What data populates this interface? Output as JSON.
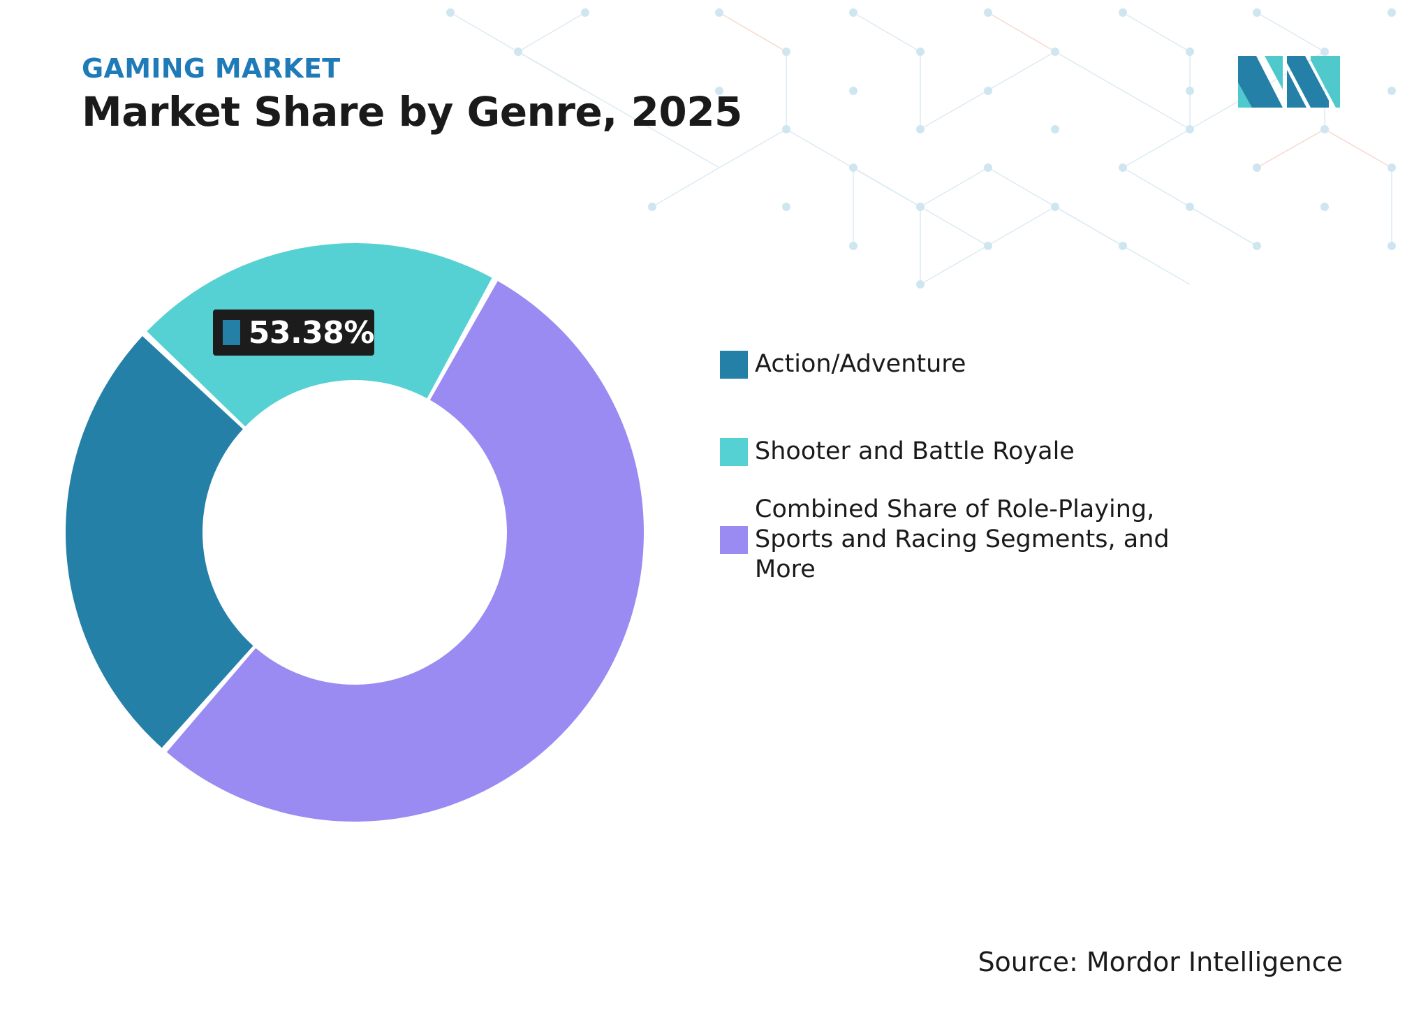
{
  "header": {
    "kicker": "GAMING MARKET",
    "title": "Market Share by Genre, 2025"
  },
  "callout": {
    "text": "53.38%",
    "color": "#2580a8"
  },
  "chart_data": {
    "type": "pie",
    "variant": "donut",
    "title": "Market Share by Genre, 2025",
    "segments": [
      {
        "label": "Action/Adventure",
        "value": 25.6,
        "color": "#2580a8"
      },
      {
        "label": "Shooter and Battle Royale",
        "value": 21.0,
        "color": "#55d1d3"
      },
      {
        "label": "Combined Share of Role-Playing, Sports and Racing Segments, and More",
        "value": 53.38,
        "color": "#9a8bf2"
      }
    ],
    "data_labels": [
      "53.38%"
    ],
    "legend_position": "right"
  },
  "legend": {
    "items": [
      {
        "label_lines": [
          "Action/Adventure"
        ],
        "color": "#2580a8"
      },
      {
        "label_lines": [
          "Shooter and Battle Royale"
        ],
        "color": "#55d1d3"
      },
      {
        "label_lines": [
          "Combined Share of Role-Playing,",
          "Sports and Racing Segments, and",
          "More"
        ],
        "color": "#9a8bf2"
      }
    ]
  },
  "footer": {
    "source": "Source: Mordor Intelligence"
  },
  "colors": {
    "accent": "#1f7ab8",
    "logo_dark": "#2580a8",
    "logo_light": "#4fc9cc"
  }
}
